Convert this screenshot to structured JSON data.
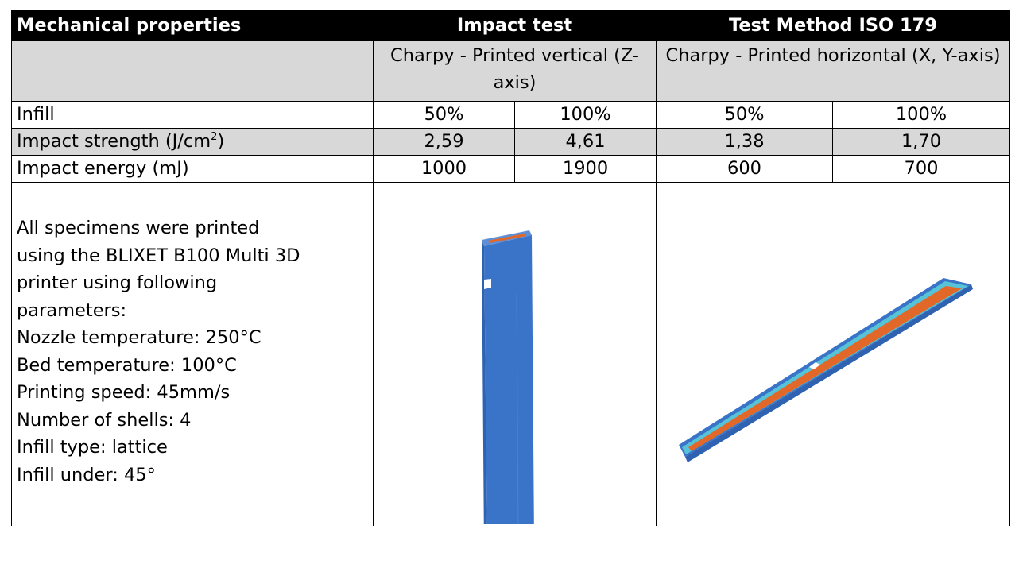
{
  "header": {
    "title": "Mechanical properties",
    "test": "Impact test",
    "method": "Test Method ISO 179"
  },
  "methods": {
    "vertical": "Charpy - Printed vertical (Z-axis)",
    "horizontal": "Charpy - Printed horizontal (X, Y-axis)"
  },
  "rows": [
    {
      "label": "Infill",
      "values": [
        "50%",
        "100%",
        "50%",
        "100%"
      ]
    },
    {
      "label": "Impact strength (J/cm",
      "label_sup": "2",
      "label_end": ")",
      "values": [
        "2,59",
        "4,61",
        "1,38",
        "1,70"
      ]
    },
    {
      "label": "Impact energy (mJ)",
      "values": [
        "1000",
        "1900",
        "600",
        "700"
      ]
    }
  ],
  "notes": {
    "lines": [
      "All specimens were printed",
      "using the BLIXET B100 Multi 3D",
      "printer using following",
      "parameters:",
      "Nozzle temperature: 250°C",
      "Bed temperature: 100°C",
      "Printing speed: 45mm/s",
      "Number of shells: 4",
      "Infill type: lattice",
      "Infill under: 45°"
    ]
  },
  "colors": {
    "header_bg": "#000000",
    "shade_bg": "#d8d8d8",
    "specimen_blue": "#3a74c8",
    "specimen_orange": "#e2682a",
    "specimen_cyan": "#57c3d6"
  }
}
